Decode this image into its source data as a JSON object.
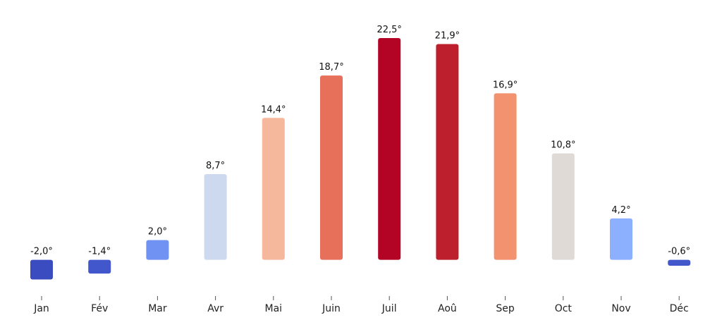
{
  "chart_data": {
    "type": "bar",
    "title": "",
    "xlabel": "",
    "ylabel": "",
    "unit_suffix": "°",
    "ylim": [
      -3.5,
      23.5
    ],
    "grid": false,
    "categories": [
      "Jan",
      "Fév",
      "Mar",
      "Avr",
      "Mai",
      "Juin",
      "Juil",
      "Aoû",
      "Sep",
      "Oct",
      "Nov",
      "Déc"
    ],
    "values": [
      -2.0,
      -1.4,
      2.0,
      8.7,
      14.4,
      18.7,
      22.5,
      21.9,
      16.9,
      10.8,
      4.2,
      -0.6
    ],
    "value_labels": [
      "-2,0°",
      "-1,4°",
      "2,0°",
      "8,7°",
      "14,4°",
      "18,7°",
      "22,5°",
      "21,9°",
      "16,9°",
      "10,8°",
      "4,2°",
      "-0,6°"
    ],
    "colors": [
      "#3b4cc0",
      "#4257cc",
      "#6f92f3",
      "#cdd9ee",
      "#f6b89c",
      "#e7705a",
      "#b40426",
      "#bd1f2d",
      "#f2926f",
      "#e0dad6",
      "#8db0fe",
      "#4358cb"
    ]
  }
}
